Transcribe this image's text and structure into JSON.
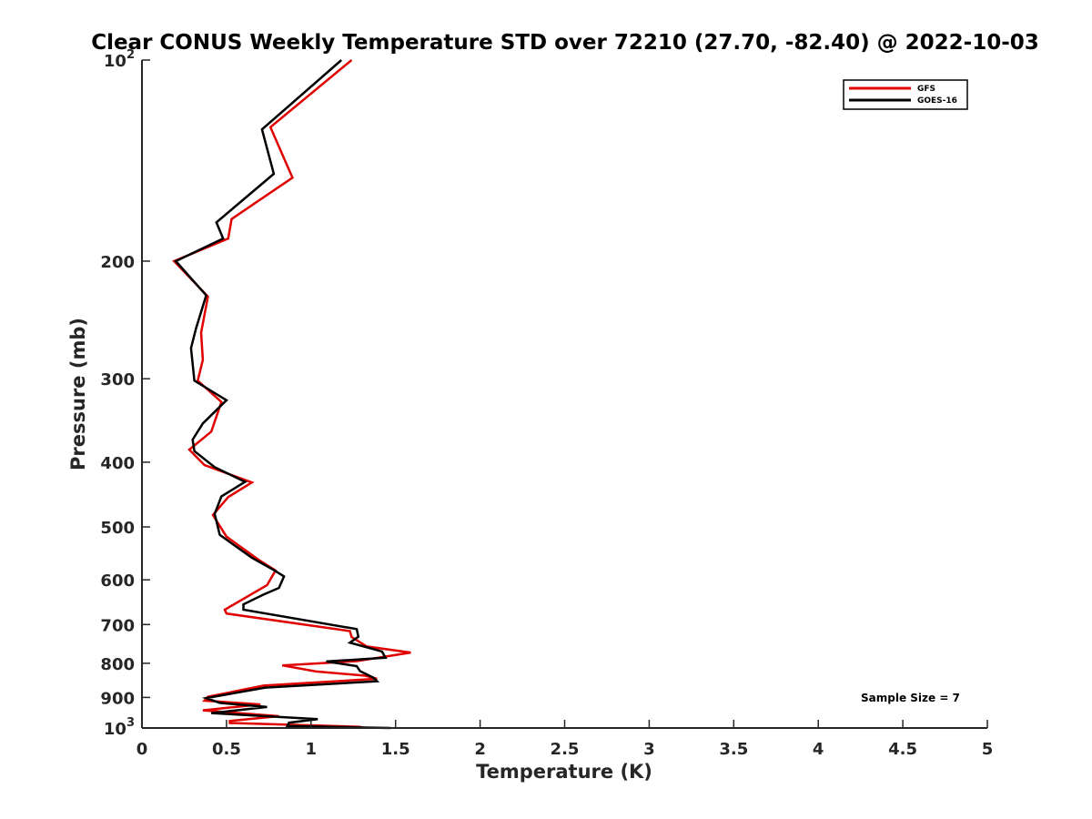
{
  "chart_data": {
    "type": "line",
    "title": "Clear CONUS Weekly Temperature STD over 72210 (27.70, -82.40) @ 2022-10-03",
    "xlabel": "Temperature (K)",
    "ylabel": "Pressure (mb)",
    "xlim": [
      0,
      5
    ],
    "ylim": [
      100,
      1000
    ],
    "y_scale": "log",
    "y_reversed": true,
    "x_ticks": [
      "0",
      "0.5",
      "1",
      "1.5",
      "2",
      "2.5",
      "3",
      "3.5",
      "4",
      "4.5",
      "5"
    ],
    "y_ticks": [
      {
        "value": 100,
        "label": "10",
        "sup": "2"
      },
      {
        "value": 200,
        "label": "200",
        "sup": ""
      },
      {
        "value": 300,
        "label": "300",
        "sup": ""
      },
      {
        "value": 400,
        "label": "400",
        "sup": ""
      },
      {
        "value": 500,
        "label": "500",
        "sup": ""
      },
      {
        "value": 600,
        "label": "600",
        "sup": ""
      },
      {
        "value": 700,
        "label": "700",
        "sup": ""
      },
      {
        "value": 800,
        "label": "800",
        "sup": ""
      },
      {
        "value": 900,
        "label": "900",
        "sup": ""
      },
      {
        "value": 1000,
        "label": "10",
        "sup": "3"
      }
    ],
    "grid": false,
    "legend_position": "top-right",
    "annotation": "Sample Size = 7",
    "series": [
      {
        "name": "GFS",
        "color": "#e00000",
        "points": [
          [
            1.24,
            100
          ],
          [
            0.76,
            126
          ],
          [
            0.89,
            150
          ],
          [
            0.53,
            173
          ],
          [
            0.51,
            185
          ],
          [
            0.19,
            200
          ],
          [
            0.39,
            226
          ],
          [
            0.35,
            256
          ],
          [
            0.36,
            281
          ],
          [
            0.33,
            302
          ],
          [
            0.47,
            325
          ],
          [
            0.41,
            360
          ],
          [
            0.28,
            383
          ],
          [
            0.37,
            404
          ],
          [
            0.65,
            429
          ],
          [
            0.51,
            451
          ],
          [
            0.42,
            480
          ],
          [
            0.5,
            517
          ],
          [
            0.69,
            560
          ],
          [
            0.79,
            581
          ],
          [
            0.74,
            611
          ],
          [
            0.49,
            665
          ],
          [
            0.5,
            674
          ],
          [
            1.23,
            716
          ],
          [
            1.24,
            731
          ],
          [
            1.33,
            755
          ],
          [
            1.59,
            771
          ],
          [
            1.27,
            794
          ],
          [
            0.83,
            806
          ],
          [
            1.03,
            823
          ],
          [
            1.32,
            835
          ],
          [
            1.39,
            844
          ],
          [
            0.72,
            864
          ],
          [
            0.39,
            898
          ],
          [
            0.37,
            910
          ],
          [
            0.7,
            922
          ],
          [
            0.36,
            941
          ],
          [
            0.81,
            960
          ],
          [
            0.52,
            976
          ],
          [
            0.52,
            983
          ],
          [
            1.29,
            996
          ],
          [
            1.31,
            1000
          ]
        ]
      },
      {
        "name": "GOES-16",
        "color": "#000000",
        "points": [
          [
            1.18,
            100
          ],
          [
            0.71,
            127
          ],
          [
            0.78,
            148
          ],
          [
            0.44,
            175
          ],
          [
            0.48,
            185
          ],
          [
            0.2,
            200
          ],
          [
            0.38,
            225
          ],
          [
            0.32,
            252
          ],
          [
            0.29,
            270
          ],
          [
            0.31,
            302
          ],
          [
            0.5,
            323
          ],
          [
            0.36,
            350
          ],
          [
            0.3,
            370
          ],
          [
            0.31,
            385
          ],
          [
            0.43,
            407
          ],
          [
            0.61,
            428
          ],
          [
            0.47,
            450
          ],
          [
            0.43,
            478
          ],
          [
            0.46,
            514
          ],
          [
            0.65,
            556
          ],
          [
            0.78,
            580
          ],
          [
            0.84,
            593
          ],
          [
            0.81,
            617
          ],
          [
            0.72,
            631
          ],
          [
            0.6,
            653
          ],
          [
            0.6,
            665
          ],
          [
            1.27,
            711
          ],
          [
            1.28,
            730
          ],
          [
            1.23,
            745
          ],
          [
            1.42,
            768
          ],
          [
            1.44,
            785
          ],
          [
            1.09,
            795
          ],
          [
            1.27,
            808
          ],
          [
            1.29,
            822
          ],
          [
            1.37,
            841
          ],
          [
            1.39,
            851
          ],
          [
            0.73,
            870
          ],
          [
            0.38,
            902
          ],
          [
            0.46,
            917
          ],
          [
            0.74,
            930
          ],
          [
            0.41,
            950
          ],
          [
            1.04,
            970
          ],
          [
            0.87,
            982
          ],
          [
            0.86,
            993
          ],
          [
            1.47,
            1000
          ]
        ]
      }
    ]
  }
}
